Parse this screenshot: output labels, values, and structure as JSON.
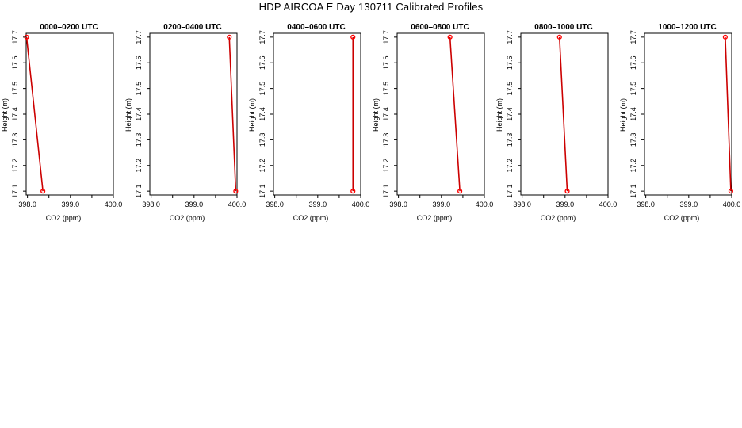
{
  "page": {
    "title": "HDP AIRCOA E  Day 130711  Calibrated Profiles"
  },
  "axes": {
    "xlabel": "CO2 (ppm)",
    "ylabel": "Height (m)",
    "x_ticks": [
      398.0,
      399.0,
      400.0
    ],
    "x_tick_labels": [
      "398.0",
      "399.0",
      "400.0"
    ],
    "y_ticks": [
      17.1,
      17.2,
      17.3,
      17.4,
      17.5,
      17.6,
      17.7
    ],
    "y_tick_labels": [
      "17.1",
      "17.2",
      "17.3",
      "17.4",
      "17.5",
      "17.6",
      "17.7"
    ],
    "xlim": [
      397.97,
      400.0
    ],
    "ylim": [
      17.085,
      17.715
    ]
  },
  "colors": {
    "line": "#cc0000",
    "point": "#ff0000",
    "axis": "#000000"
  },
  "chart_data": [
    {
      "type": "line",
      "title": "0000–0200 UTC",
      "series": [
        {
          "x": [
            398.36,
            397.98
          ],
          "y": [
            17.1,
            17.7
          ]
        }
      ]
    },
    {
      "type": "line",
      "title": "0200–0400 UTC",
      "series": [
        {
          "x": [
            399.97,
            399.82
          ],
          "y": [
            17.1,
            17.7
          ]
        }
      ]
    },
    {
      "type": "line",
      "title": "0400–0600 UTC",
      "series": [
        {
          "x": [
            399.82,
            399.82
          ],
          "y": [
            17.1,
            17.7
          ]
        }
      ]
    },
    {
      "type": "line",
      "title": "0600–0800 UTC",
      "series": [
        {
          "x": [
            399.43,
            399.2
          ],
          "y": [
            17.1,
            17.7
          ]
        }
      ]
    },
    {
      "type": "line",
      "title": "0800–1000 UTC",
      "series": [
        {
          "x": [
            399.05,
            398.87
          ],
          "y": [
            17.1,
            17.7
          ]
        }
      ]
    },
    {
      "type": "line",
      "title": "1000–1200 UTC",
      "series": [
        {
          "x": [
            399.98,
            399.85
          ],
          "y": [
            17.1,
            17.7
          ]
        }
      ]
    }
  ]
}
